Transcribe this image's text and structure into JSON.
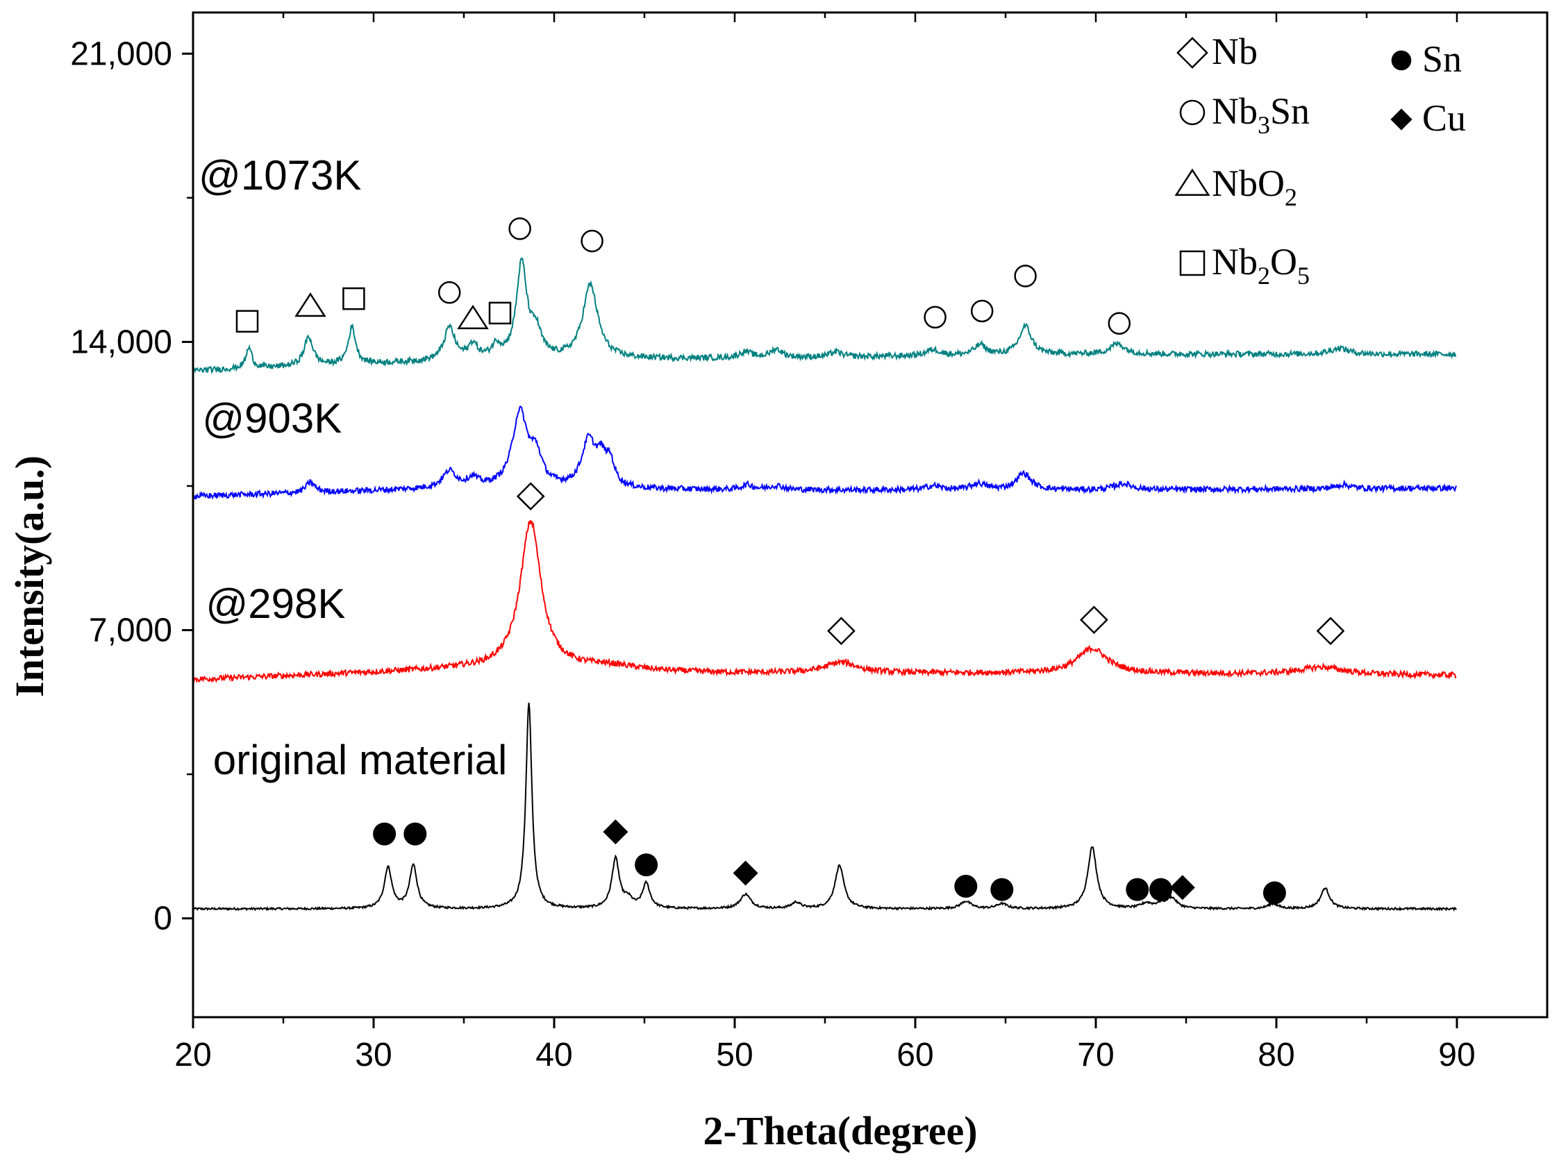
{
  "chart_data": {
    "type": "line",
    "title": "",
    "xlabel": "2-Theta(degree)",
    "ylabel": "Intensity(a.u.)",
    "xlim": [
      20,
      95
    ],
    "ylim": [
      -2400,
      22000
    ],
    "x_ticks": [
      20,
      30,
      40,
      50,
      60,
      70,
      80,
      90
    ],
    "x_tick_labels": [
      "20",
      "30",
      "40",
      "50",
      "60",
      "70",
      "80",
      "90"
    ],
    "y_ticks": [
      0,
      7000,
      14000,
      21000
    ],
    "y_tick_labels": [
      "0",
      "7,000",
      "14,000",
      "21,000"
    ],
    "grid": false,
    "series": [
      {
        "name": "original material",
        "color": "#000000",
        "x_range": [
          20,
          90
        ],
        "baseline": [
          [
            20,
            230
          ],
          [
            90,
            230
          ]
        ],
        "peaks": [
          [
            30.8,
            1000,
            0.25
          ],
          [
            32.2,
            1050,
            0.25
          ],
          [
            38.6,
            5000,
            0.2
          ],
          [
            43.4,
            1200,
            0.25
          ],
          [
            44.1,
            200,
            0.3
          ],
          [
            45.1,
            600,
            0.25
          ],
          [
            50.6,
            350,
            0.35
          ],
          [
            53.4,
            150,
            0.3
          ],
          [
            55.8,
            1050,
            0.3
          ],
          [
            62.8,
            180,
            0.35
          ],
          [
            64.8,
            120,
            0.35
          ],
          [
            69.8,
            1500,
            0.3
          ],
          [
            72.8,
            120,
            0.35
          ],
          [
            73.6,
            100,
            0.35
          ],
          [
            74.2,
            250,
            0.35
          ],
          [
            79.8,
            120,
            0.35
          ],
          [
            82.7,
            500,
            0.3
          ]
        ]
      },
      {
        "name": "@298K",
        "color": "#ff0000",
        "x_range": [
          20,
          90
        ],
        "baseline": [
          [
            20,
            5800
          ],
          [
            35,
            6050
          ],
          [
            50,
            5950
          ],
          [
            70,
            5950
          ],
          [
            90,
            5900
          ]
        ],
        "peaks": [
          [
            38.7,
            3600,
            0.7
          ],
          [
            55.9,
            260,
            1.1
          ],
          [
            69.8,
            600,
            1.0
          ],
          [
            82.5,
            180,
            1.5
          ],
          [
            43,
            120,
            2.0
          ]
        ]
      },
      {
        "name": "@903K",
        "color": "#0000ff",
        "x_range": [
          20,
          90
        ],
        "baseline": [
          [
            20,
            10250
          ],
          [
            35,
            10450
          ],
          [
            50,
            10400
          ],
          [
            70,
            10400
          ],
          [
            90,
            10450
          ]
        ],
        "peaks": [
          [
            26.5,
            250,
            0.3
          ],
          [
            34.2,
            400,
            0.45
          ],
          [
            35.5,
            200,
            0.35
          ],
          [
            38.1,
            1800,
            0.5
          ],
          [
            39.0,
            700,
            0.4
          ],
          [
            41.9,
            1100,
            0.45
          ],
          [
            42.6,
            600,
            0.35
          ],
          [
            43.1,
            550,
            0.3
          ],
          [
            50.7,
            120,
            0.4
          ],
          [
            52.3,
            100,
            0.5
          ],
          [
            61.0,
            100,
            0.5
          ],
          [
            63.5,
            150,
            0.5
          ],
          [
            66.0,
            400,
            0.5
          ],
          [
            71.5,
            150,
            0.6
          ],
          [
            83.7,
            100,
            0.5
          ]
        ]
      },
      {
        "name": "@1073K",
        "color": "#008080",
        "x_range": [
          20,
          90
        ],
        "baseline": [
          [
            20,
            13300
          ],
          [
            35,
            13550
          ],
          [
            50,
            13600
          ],
          [
            70,
            13700
          ],
          [
            90,
            13700
          ]
        ],
        "peaks": [
          [
            23.1,
            500,
            0.2
          ],
          [
            26.4,
            700,
            0.3
          ],
          [
            28.8,
            900,
            0.25
          ],
          [
            34.2,
            800,
            0.35
          ],
          [
            35.5,
            350,
            0.3
          ],
          [
            36.8,
            300,
            0.3
          ],
          [
            38.2,
            2300,
            0.35
          ],
          [
            39.0,
            600,
            0.35
          ],
          [
            42.0,
            1800,
            0.5
          ],
          [
            50.6,
            150,
            0.4
          ],
          [
            52.3,
            200,
            0.4
          ],
          [
            55.6,
            120,
            0.4
          ],
          [
            61.0,
            150,
            0.5
          ],
          [
            63.6,
            250,
            0.4
          ],
          [
            66.1,
            700,
            0.4
          ],
          [
            71.2,
            250,
            0.5
          ],
          [
            83.5,
            150,
            0.6
          ]
        ]
      }
    ],
    "sample_labels": [
      {
        "text": "@1073K",
        "x": 20,
        "y": 17700
      },
      {
        "text": "@903K",
        "x": 20.2,
        "y": 11800
      },
      {
        "text": "@298K",
        "x": 20.4,
        "y": 7300
      },
      {
        "text": "original material",
        "x": 20.8,
        "y": 3500
      }
    ],
    "legend": {
      "position": "top-right",
      "entries": [
        {
          "marker": "diamond-open",
          "label": "Nb"
        },
        {
          "marker": "circle-open",
          "label": "Nb",
          "sub": "3",
          "tail": "Sn"
        },
        {
          "marker": "triangle-open",
          "label": "NbO",
          "sub": "2",
          "tail": ""
        },
        {
          "marker": "square-open",
          "label": "Nb",
          "sub": "2",
          "tail": "O",
          "sub2": "5"
        },
        {
          "marker": "circle-filled",
          "label": "Sn"
        },
        {
          "marker": "diamond-filled",
          "label": "Cu"
        }
      ]
    },
    "peak_markers": [
      {
        "marker": "square-open",
        "x": 23.0,
        "y": 14500
      },
      {
        "marker": "triangle-open",
        "x": 26.5,
        "y": 14850
      },
      {
        "marker": "square-open",
        "x": 28.9,
        "y": 15050
      },
      {
        "marker": "circle-open",
        "x": 34.2,
        "y": 15200
      },
      {
        "marker": "triangle-open",
        "x": 35.5,
        "y": 14550
      },
      {
        "marker": "square-open",
        "x": 37.0,
        "y": 14700
      },
      {
        "marker": "circle-open",
        "x": 38.1,
        "y": 16750
      },
      {
        "marker": "circle-open",
        "x": 42.1,
        "y": 16450
      },
      {
        "marker": "circle-open",
        "x": 61.1,
        "y": 14600
      },
      {
        "marker": "circle-open",
        "x": 63.7,
        "y": 14750
      },
      {
        "marker": "circle-open",
        "x": 66.1,
        "y": 15600
      },
      {
        "marker": "circle-open",
        "x": 71.3,
        "y": 14450
      },
      {
        "marker": "diamond-open",
        "x": 38.7,
        "y": 10250
      },
      {
        "marker": "diamond-open",
        "x": 55.9,
        "y": 6980
      },
      {
        "marker": "diamond-open",
        "x": 69.9,
        "y": 7250
      },
      {
        "marker": "diamond-open",
        "x": 83.0,
        "y": 6980
      },
      {
        "marker": "circle-filled",
        "x": 30.6,
        "y": 2050
      },
      {
        "marker": "circle-filled",
        "x": 32.3,
        "y": 2050
      },
      {
        "marker": "diamond-filled",
        "x": 43.4,
        "y": 2100
      },
      {
        "marker": "circle-filled",
        "x": 45.1,
        "y": 1300
      },
      {
        "marker": "diamond-filled",
        "x": 50.6,
        "y": 1100
      },
      {
        "marker": "circle-filled",
        "x": 62.8,
        "y": 780
      },
      {
        "marker": "circle-filled",
        "x": 64.8,
        "y": 700
      },
      {
        "marker": "circle-filled",
        "x": 72.3,
        "y": 700
      },
      {
        "marker": "circle-filled",
        "x": 73.6,
        "y": 700
      },
      {
        "marker": "diamond-filled",
        "x": 74.8,
        "y": 750
      },
      {
        "marker": "circle-filled",
        "x": 79.9,
        "y": 620
      }
    ]
  }
}
